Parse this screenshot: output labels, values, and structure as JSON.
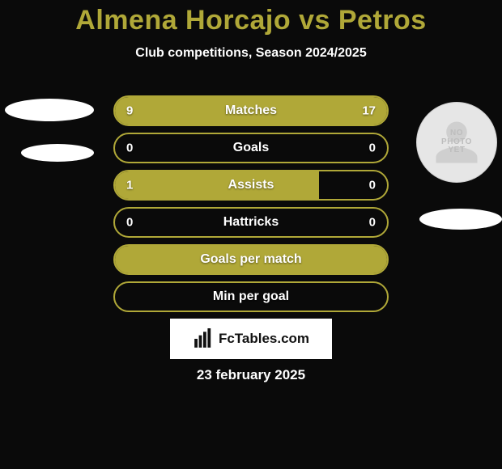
{
  "title": {
    "text": "Almena Horcajo vs Petros",
    "color": "#b0a838",
    "fontsize": 34
  },
  "subtitle": {
    "text": "Club competitions, Season 2024/2025",
    "color": "#ffffff",
    "fontsize": 16
  },
  "bar_style": {
    "border_color": "#b0a838",
    "fill_color": "#b0a838",
    "track_color": "transparent",
    "height": 38,
    "label_color": "#ffffff",
    "value_color": "#ffffff",
    "label_fontsize": 16
  },
  "rows": [
    {
      "label": "Matches",
      "left": "9",
      "right": "17",
      "left_fill_pct": 40,
      "right_fill_pct": 100
    },
    {
      "label": "Goals",
      "left": "0",
      "right": "0",
      "left_fill_pct": 0,
      "right_fill_pct": 0
    },
    {
      "label": "Assists",
      "left": "1",
      "right": "0",
      "left_fill_pct": 75,
      "right_fill_pct": 0
    },
    {
      "label": "Hattricks",
      "left": "0",
      "right": "0",
      "left_fill_pct": 0,
      "right_fill_pct": 0
    },
    {
      "label": "Goals per match",
      "left": "",
      "right": "",
      "left_fill_pct": 100,
      "right_fill_pct": 100,
      "full": true
    },
    {
      "label": "Min per goal",
      "left": "",
      "right": "",
      "left_fill_pct": 0,
      "right_fill_pct": 0
    }
  ],
  "left_player": {
    "placeholder": true
  },
  "right_player": {
    "placeholder": true,
    "no_photo_text": "NO\nPHOTO\nYET"
  },
  "brand": {
    "text": "FcTables.com",
    "color": "#111111",
    "bg": "#ffffff"
  },
  "date": {
    "text": "23 february 2025",
    "color": "#ffffff",
    "fontsize": 17
  },
  "background": "#0a0a0a"
}
